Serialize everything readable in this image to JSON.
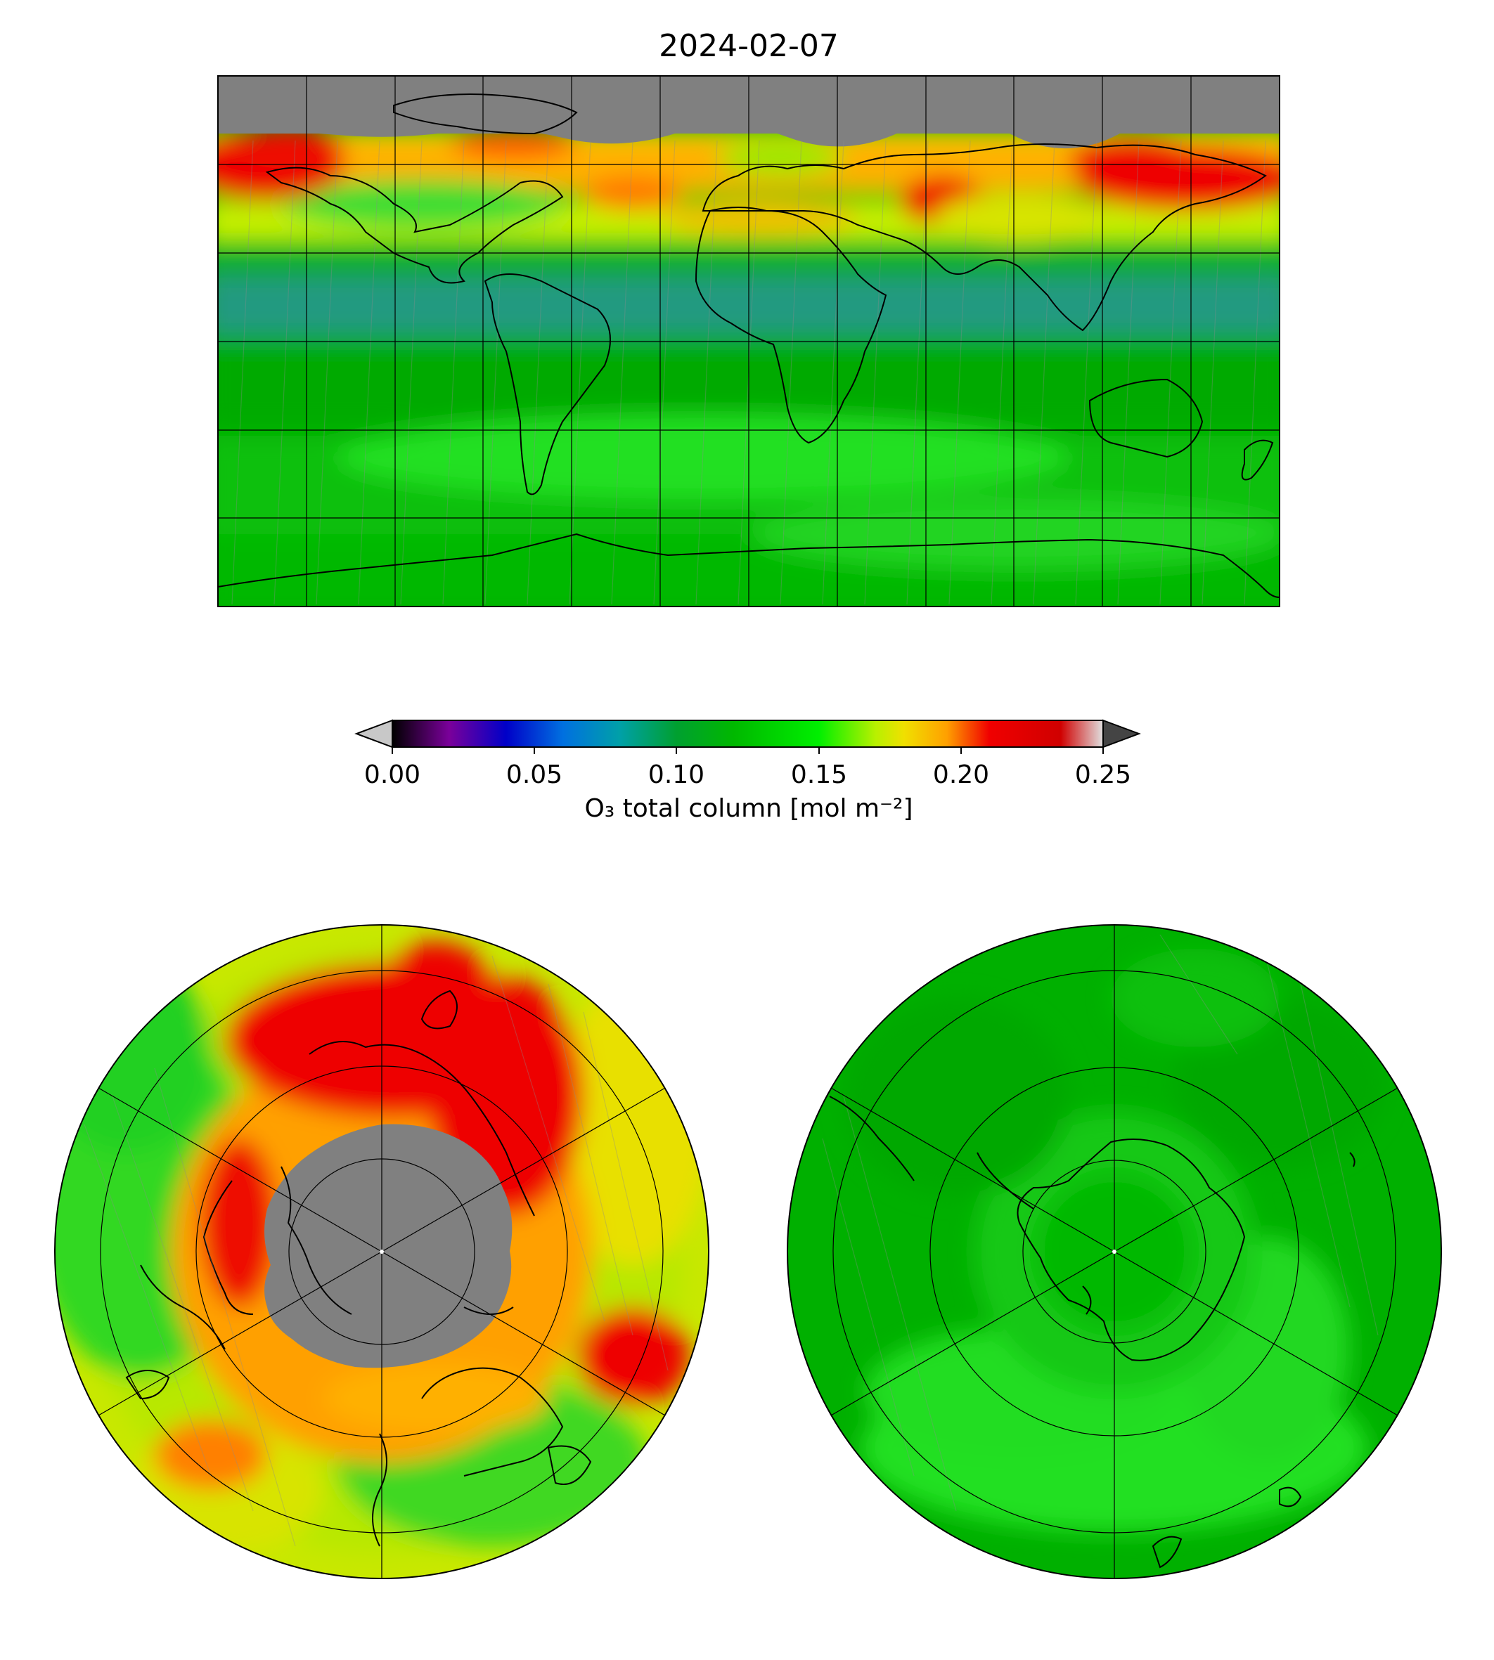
{
  "title": "2024-02-07",
  "colorbar": {
    "label": "O₃ total column [mol m⁻²]",
    "ticks": [
      "0.00",
      "0.05",
      "0.10",
      "0.15",
      "0.20",
      "0.25"
    ],
    "range": [
      0.0,
      0.25
    ],
    "extend": "both",
    "stops": [
      {
        "value": 0.0,
        "color": "#000000"
      },
      {
        "value": 0.02,
        "color": "#7a009a"
      },
      {
        "value": 0.04,
        "color": "#0000c8"
      },
      {
        "value": 0.06,
        "color": "#0070e0"
      },
      {
        "value": 0.08,
        "color": "#00a0a8"
      },
      {
        "value": 0.1,
        "color": "#00a030"
      },
      {
        "value": 0.12,
        "color": "#00b800"
      },
      {
        "value": 0.15,
        "color": "#00ef00"
      },
      {
        "value": 0.17,
        "color": "#b8f000"
      },
      {
        "value": 0.18,
        "color": "#f0e000"
      },
      {
        "value": 0.195,
        "color": "#ffa000"
      },
      {
        "value": 0.21,
        "color": "#f00000"
      },
      {
        "value": 0.235,
        "color": "#d00000"
      },
      {
        "value": 0.25,
        "color": "#e0e0e0"
      }
    ],
    "under_color": "#c8c8c8",
    "over_color": "#444444"
  },
  "maps": {
    "global": {
      "projection": "equirectangular",
      "gridlines": {
        "lon_step_deg": 30,
        "lat_step_deg": 30
      }
    },
    "north_polar": {
      "projection": "polar stereographic (north)"
    },
    "south_polar": {
      "projection": "polar stereographic (south)"
    }
  },
  "colors": {
    "missing_data": "#808080",
    "coastline": "#000000",
    "low_green": "#00a800",
    "mid_green": "#22e022",
    "yellow": "#e8e000",
    "orange": "#ff9a00",
    "red": "#e60000",
    "teal": "#22a08a"
  }
}
